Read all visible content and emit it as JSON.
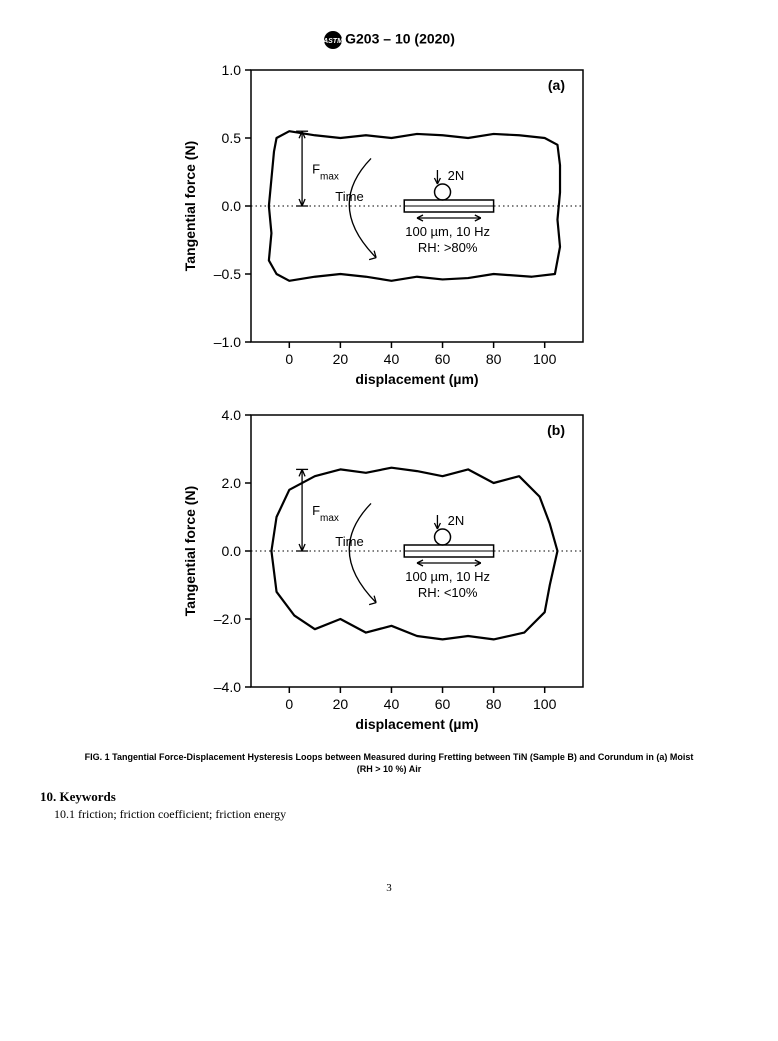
{
  "header": {
    "standard": "G203 – 10 (2020)"
  },
  "chart_a": {
    "type": "hysteresis-loop",
    "panel_label": "(a)",
    "xlabel": "displacement (µm)",
    "ylabel": "Tangential force (N)",
    "xlim": [
      -15,
      115
    ],
    "ylim": [
      -1.0,
      1.0
    ],
    "xticks": [
      0,
      20,
      40,
      60,
      80,
      100
    ],
    "yticks": [
      -1.0,
      -0.5,
      0.0,
      0.5,
      1.0
    ],
    "ytick_labels": [
      "–1.0",
      "–0.5",
      "0.0",
      "0.5",
      "1.0"
    ],
    "loop_path": [
      [
        -5,
        0.5
      ],
      [
        0,
        0.55
      ],
      [
        10,
        0.52
      ],
      [
        20,
        0.5
      ],
      [
        30,
        0.52
      ],
      [
        40,
        0.5
      ],
      [
        50,
        0.53
      ],
      [
        60,
        0.52
      ],
      [
        70,
        0.5
      ],
      [
        80,
        0.53
      ],
      [
        90,
        0.52
      ],
      [
        100,
        0.5
      ],
      [
        105,
        0.45
      ],
      [
        106,
        0.3
      ],
      [
        106,
        0.1
      ],
      [
        105,
        -0.1
      ],
      [
        106,
        -0.3
      ],
      [
        104,
        -0.5
      ],
      [
        95,
        -0.52
      ],
      [
        80,
        -0.5
      ],
      [
        70,
        -0.53
      ],
      [
        60,
        -0.54
      ],
      [
        50,
        -0.52
      ],
      [
        40,
        -0.55
      ],
      [
        30,
        -0.52
      ],
      [
        20,
        -0.5
      ],
      [
        10,
        -0.52
      ],
      [
        0,
        -0.55
      ],
      [
        -5,
        -0.5
      ],
      [
        -8,
        -0.4
      ],
      [
        -7,
        -0.2
      ],
      [
        -8,
        0.0
      ],
      [
        -7,
        0.2
      ],
      [
        -6,
        0.4
      ],
      [
        -5,
        0.5
      ]
    ],
    "fmax_label": "F",
    "fmax_sub": "max",
    "fmax_bar_y": [
      0.0,
      0.55
    ],
    "fmax_x": 5,
    "time_label": "Time",
    "probe_label": "2N",
    "cond_line1": "100 µm, 10 Hz",
    "cond_line2": "RH: >80%",
    "colors": {
      "line": "#000000",
      "bg": "#ffffff",
      "border": "#000000",
      "grid": "#000000"
    },
    "line_width": 2.2
  },
  "chart_b": {
    "type": "hysteresis-loop",
    "panel_label": "(b)",
    "xlabel": "displacement (µm)",
    "ylabel": "Tangential force (N)",
    "xlim": [
      -15,
      115
    ],
    "ylim": [
      -4.0,
      4.0
    ],
    "xticks": [
      0,
      20,
      40,
      60,
      80,
      100
    ],
    "yticks": [
      -4.0,
      -2.0,
      0.0,
      2.0,
      4.0
    ],
    "ytick_labels": [
      "–4.0",
      "–2.0",
      "0.0",
      "2.0",
      "4.0"
    ],
    "loop_path": [
      [
        0,
        1.8
      ],
      [
        10,
        2.2
      ],
      [
        20,
        2.4
      ],
      [
        30,
        2.3
      ],
      [
        40,
        2.45
      ],
      [
        50,
        2.35
      ],
      [
        60,
        2.2
      ],
      [
        70,
        2.4
      ],
      [
        80,
        2.0
      ],
      [
        90,
        2.2
      ],
      [
        98,
        1.6
      ],
      [
        102,
        0.8
      ],
      [
        105,
        0.0
      ],
      [
        102,
        -1.0
      ],
      [
        100,
        -1.8
      ],
      [
        92,
        -2.4
      ],
      [
        80,
        -2.6
      ],
      [
        70,
        -2.5
      ],
      [
        60,
        -2.6
      ],
      [
        50,
        -2.5
      ],
      [
        40,
        -2.2
      ],
      [
        30,
        -2.4
      ],
      [
        20,
        -2.0
      ],
      [
        10,
        -2.3
      ],
      [
        2,
        -1.9
      ],
      [
        -5,
        -1.2
      ],
      [
        -7,
        0.0
      ],
      [
        -5,
        1.0
      ],
      [
        0,
        1.8
      ]
    ],
    "fmax_label": "F",
    "fmax_sub": "max",
    "fmax_bar_y": [
      0.0,
      2.4
    ],
    "fmax_x": 5,
    "time_label": "Time",
    "probe_label": "2N",
    "cond_line1": "100 µm, 10 Hz",
    "cond_line2": "RH: <10%",
    "colors": {
      "line": "#000000",
      "bg": "#ffffff",
      "border": "#000000",
      "grid": "#000000"
    },
    "line_width": 2.2
  },
  "figure_caption": "FIG. 1 Tangential Force-Displacement Hysteresis Loops between Measured during Fretting between TiN (Sample B) and Corundum in (a) Moist (RH > 10 %) Air",
  "keywords": {
    "heading": "10.  Keywords",
    "body": "10.1  friction; friction coefficient; friction energy"
  },
  "page_number": "3"
}
